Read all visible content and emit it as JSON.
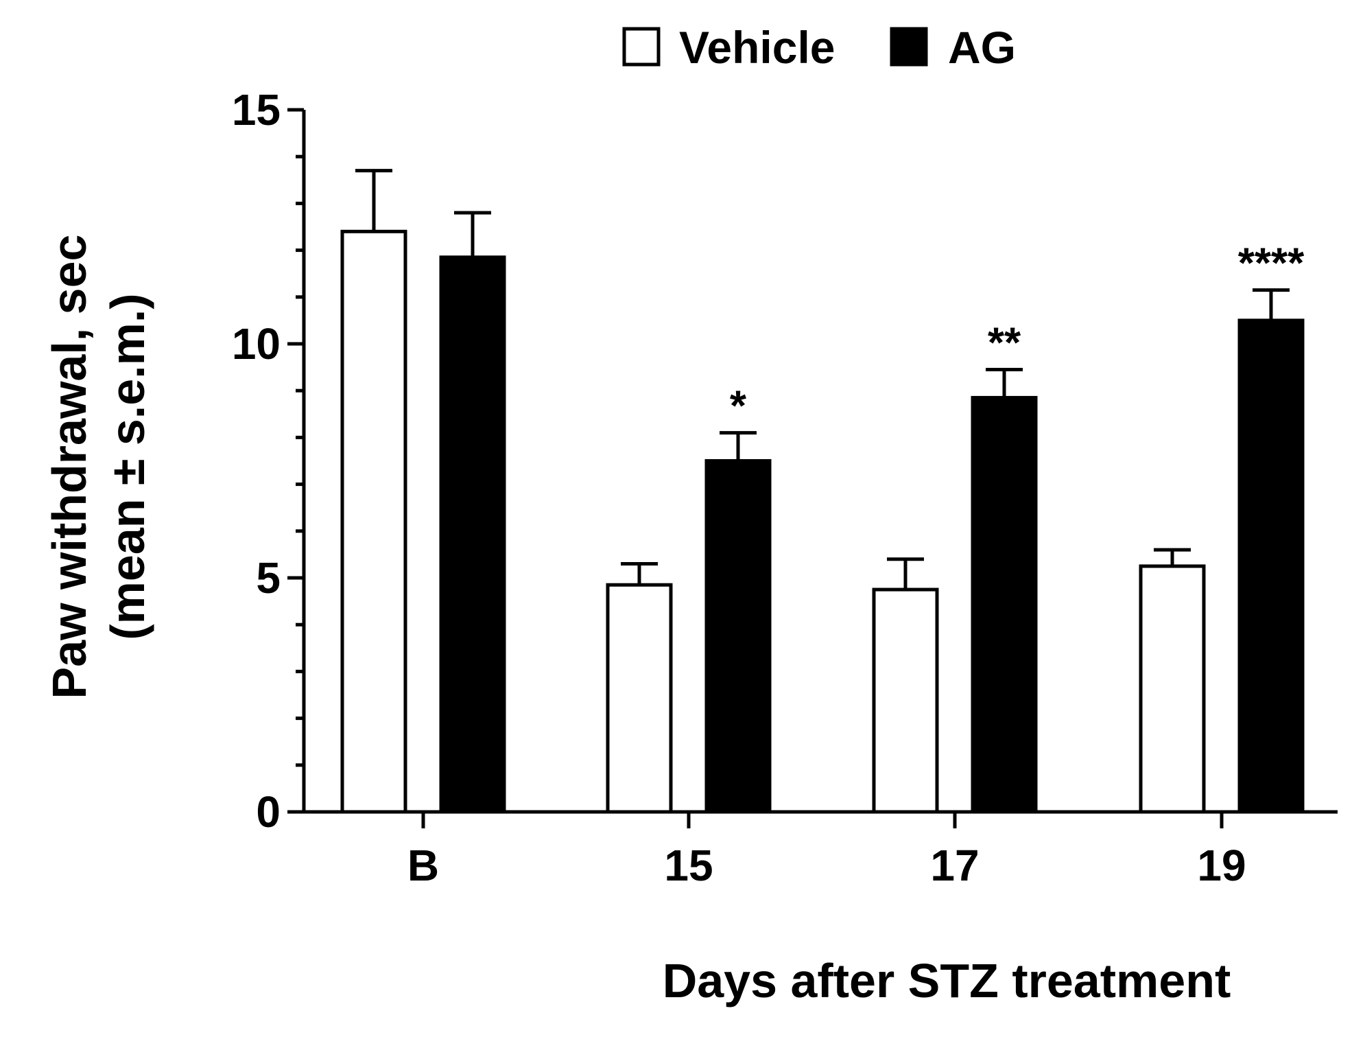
{
  "chart_data": {
    "type": "bar",
    "title": "",
    "categories": [
      "B",
      "15",
      "17",
      "19"
    ],
    "series": [
      {
        "name": "Vehicle",
        "fill": "#ffffff",
        "values": [
          12.4,
          4.85,
          4.75,
          5.25
        ],
        "errors": [
          1.3,
          0.45,
          0.65,
          0.35
        ]
      },
      {
        "name": "AG",
        "fill": "#000000",
        "values": [
          11.85,
          7.5,
          8.85,
          10.5
        ],
        "errors": [
          0.95,
          0.6,
          0.6,
          0.65
        ]
      }
    ],
    "significance": [
      "",
      "*",
      "**",
      "****"
    ],
    "xlabel": "Days after STZ treatment",
    "ylabel_line1": "Paw withdrawal, sec",
    "ylabel_line2": "(mean ± s.e.m.)",
    "ylim": [
      0,
      15
    ],
    "yticks": [
      0,
      5,
      10,
      15
    ],
    "y_minor_step": 1,
    "grid": false,
    "legend_position": "top-center"
  }
}
